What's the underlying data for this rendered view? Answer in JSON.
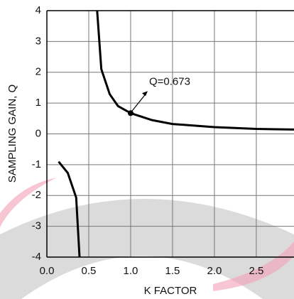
{
  "chart_data": {
    "type": "line",
    "xlabel": "K FACTOR",
    "ylabel": "SAMPLING GAIN, Q",
    "xlim": [
      0,
      2.95
    ],
    "ylim": [
      -4,
      4
    ],
    "xticks": [
      {
        "value": 0,
        "label": "0.0"
      },
      0.5,
      {
        "value": 1,
        "label": "1.0"
      },
      1.5,
      {
        "value": 2,
        "label": "2.0"
      },
      2.5
    ],
    "yticks": [
      4,
      3,
      2,
      1,
      0,
      -1,
      -2,
      -3,
      -4
    ],
    "grid": true,
    "series": [
      {
        "color": "#000000",
        "x": [
          0.6,
          0.65,
          0.75,
          0.85,
          1.0,
          1.25,
          1.5,
          2.0,
          2.5,
          2.95
        ],
        "values": [
          4,
          2.1,
          1.29,
          0.9,
          0.673,
          0.45,
          0.32,
          0.22,
          0.16,
          0.14
        ]
      },
      {
        "color": "#000000",
        "x": [
          0.14,
          0.25,
          0.35,
          0.39
        ],
        "values": [
          -0.9,
          -1.27,
          -2.07,
          -4
        ]
      }
    ],
    "annotations": [
      {
        "text": "Q=0.673",
        "x": 1.0,
        "y": 0.673
      }
    ]
  }
}
